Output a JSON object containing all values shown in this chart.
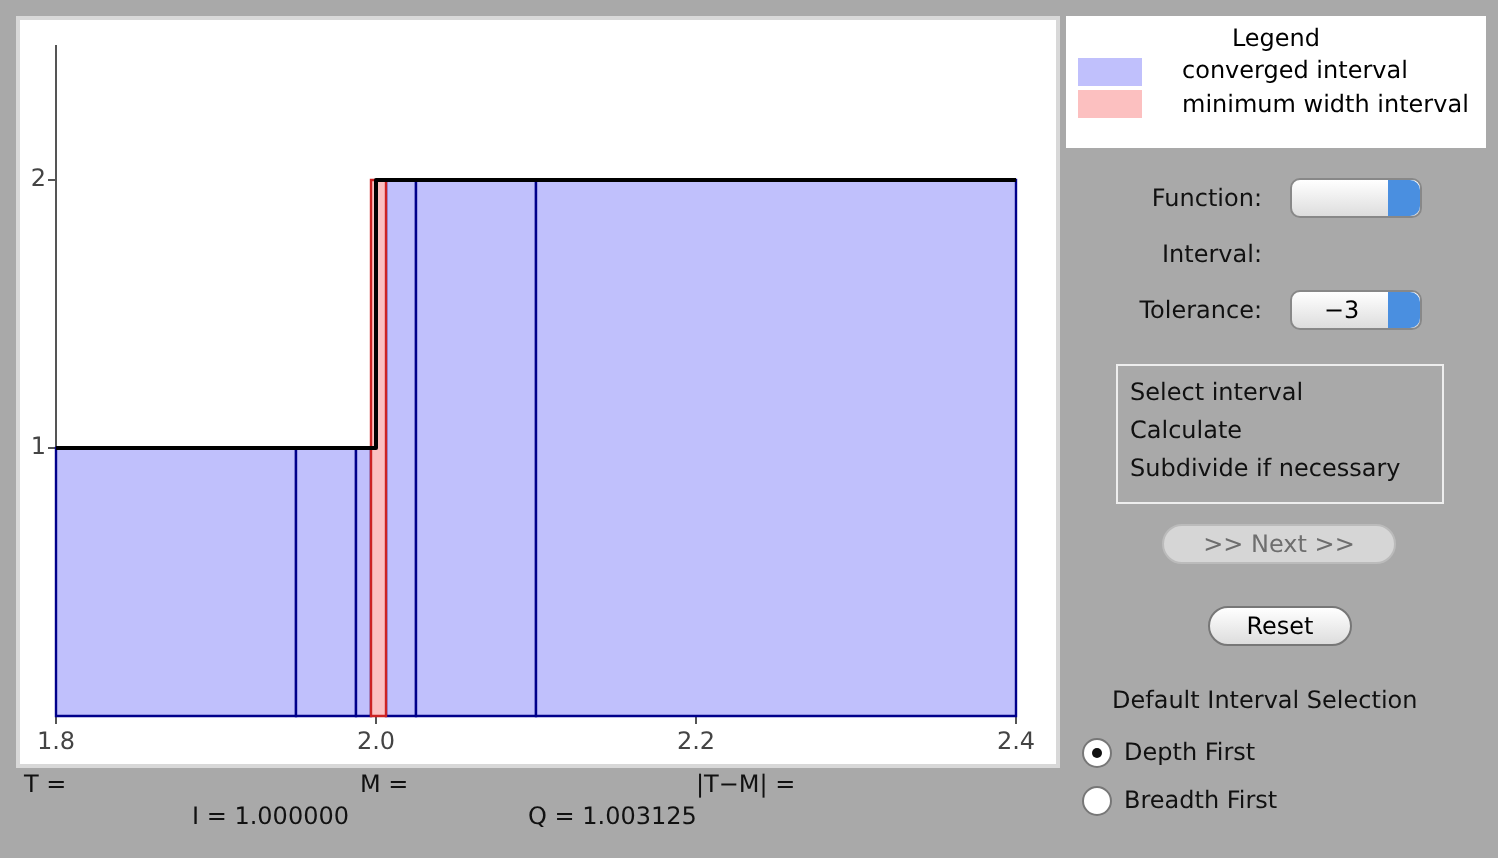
{
  "chart_data": {
    "type": "histogram",
    "bins": [
      1.8,
      1.95,
      1.9875,
      1.996875,
      2.00625,
      2.025,
      2.1,
      2.4
    ],
    "series": [
      {
        "name": "converged interval",
        "color": "#c0c0fc",
        "values": [
          1,
          1,
          1,
          null,
          2,
          2,
          2
        ]
      },
      {
        "name": "minimum width interval",
        "color": "#fcc0c0",
        "values": [
          null,
          null,
          null,
          2,
          null,
          null,
          null
        ]
      },
      {
        "type": "step",
        "color": "#000000",
        "x": [
          1.8,
          2.0,
          2.4
        ],
        "values": [
          1,
          2,
          2
        ]
      }
    ],
    "xlim": [
      1.8,
      2.4
    ],
    "xticks": [
      {
        "value": 1.8,
        "label": "1.8"
      },
      {
        "value": 2.0,
        "label": "2.0"
      },
      {
        "value": 2.2,
        "label": "2.2"
      },
      {
        "value": 2.4,
        "label": "2.4"
      }
    ],
    "ylim": [
      0,
      2.5
    ],
    "yticks": [
      1,
      2
    ],
    "grid": false,
    "legend": "top right",
    "legend_title": "Legend",
    "annotations": [
      "T =",
      "M =",
      "|T−M| =",
      "I = 1.000000",
      "Q = 1.003125",
      "Function:",
      "Interval:",
      "Tolerance:",
      "−3",
      "Select interval",
      "Calculate",
      "Subdivide if necessary",
      ">> Next >>",
      "Reset",
      "Default Interval Selection",
      "Depth First",
      "Breadth First"
    ]
  }
}
